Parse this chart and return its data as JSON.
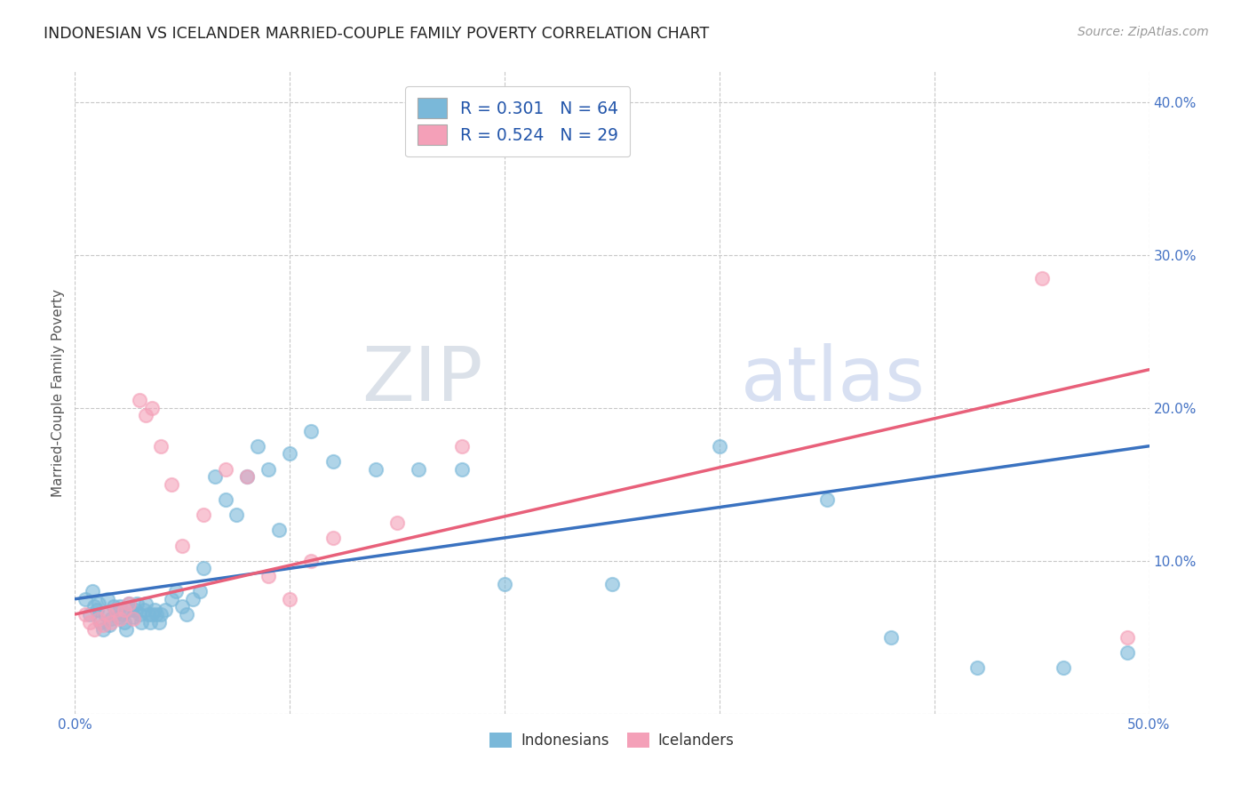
{
  "title": "INDONESIAN VS ICELANDER MARRIED-COUPLE FAMILY POVERTY CORRELATION CHART",
  "source": "Source: ZipAtlas.com",
  "ylabel": "Married-Couple Family Poverty",
  "legend_indonesians": "Indonesians",
  "legend_icelanders": "Icelanders",
  "r_indonesian": 0.301,
  "n_indonesian": 64,
  "r_icelander": 0.524,
  "n_icelander": 29,
  "xlim": [
    0.0,
    0.5
  ],
  "ylim": [
    0.0,
    0.42
  ],
  "xticks": [
    0.0,
    0.1,
    0.2,
    0.3,
    0.4,
    0.5
  ],
  "yticks": [
    0.0,
    0.1,
    0.2,
    0.3,
    0.4
  ],
  "xticklabels": [
    "0.0%",
    "",
    "",
    "",
    "",
    "50.0%"
  ],
  "yticklabels": [
    "",
    "10.0%",
    "20.0%",
    "30.0%",
    "40.0%"
  ],
  "color_indonesian": "#7ab8d9",
  "color_icelander": "#f4a0b8",
  "color_indonesian_line": "#3a72c0",
  "color_icelander_line": "#e8607a",
  "background_color": "#ffffff",
  "watermark_zip": "ZIP",
  "watermark_atlas": "atlas",
  "indo_x": [
    0.005,
    0.007,
    0.008,
    0.009,
    0.01,
    0.011,
    0.012,
    0.013,
    0.014,
    0.015,
    0.016,
    0.017,
    0.018,
    0.019,
    0.02,
    0.021,
    0.022,
    0.023,
    0.024,
    0.025,
    0.026,
    0.027,
    0.028,
    0.029,
    0.03,
    0.031,
    0.032,
    0.033,
    0.034,
    0.035,
    0.036,
    0.037,
    0.038,
    0.039,
    0.04,
    0.042,
    0.045,
    0.047,
    0.05,
    0.052,
    0.055,
    0.058,
    0.06,
    0.065,
    0.07,
    0.075,
    0.08,
    0.085,
    0.09,
    0.095,
    0.1,
    0.11,
    0.12,
    0.14,
    0.16,
    0.18,
    0.2,
    0.25,
    0.3,
    0.35,
    0.38,
    0.42,
    0.46,
    0.49
  ],
  "indo_y": [
    0.075,
    0.065,
    0.08,
    0.07,
    0.068,
    0.072,
    0.06,
    0.055,
    0.065,
    0.075,
    0.058,
    0.062,
    0.07,
    0.068,
    0.063,
    0.07,
    0.065,
    0.06,
    0.055,
    0.072,
    0.068,
    0.063,
    0.068,
    0.072,
    0.065,
    0.06,
    0.068,
    0.072,
    0.065,
    0.06,
    0.065,
    0.068,
    0.065,
    0.06,
    0.065,
    0.068,
    0.075,
    0.08,
    0.07,
    0.065,
    0.075,
    0.08,
    0.095,
    0.155,
    0.14,
    0.13,
    0.155,
    0.175,
    0.16,
    0.12,
    0.17,
    0.185,
    0.165,
    0.16,
    0.16,
    0.16,
    0.085,
    0.085,
    0.175,
    0.14,
    0.05,
    0.03,
    0.03,
    0.04
  ],
  "ice_x": [
    0.005,
    0.007,
    0.009,
    0.011,
    0.013,
    0.015,
    0.017,
    0.019,
    0.021,
    0.023,
    0.025,
    0.027,
    0.03,
    0.033,
    0.036,
    0.04,
    0.045,
    0.05,
    0.06,
    0.07,
    0.08,
    0.09,
    0.1,
    0.11,
    0.12,
    0.15,
    0.18,
    0.45,
    0.49
  ],
  "ice_y": [
    0.065,
    0.06,
    0.055,
    0.062,
    0.058,
    0.065,
    0.06,
    0.068,
    0.062,
    0.068,
    0.072,
    0.062,
    0.205,
    0.195,
    0.2,
    0.175,
    0.15,
    0.11,
    0.13,
    0.16,
    0.155,
    0.09,
    0.075,
    0.1,
    0.115,
    0.125,
    0.175,
    0.285,
    0.05
  ]
}
